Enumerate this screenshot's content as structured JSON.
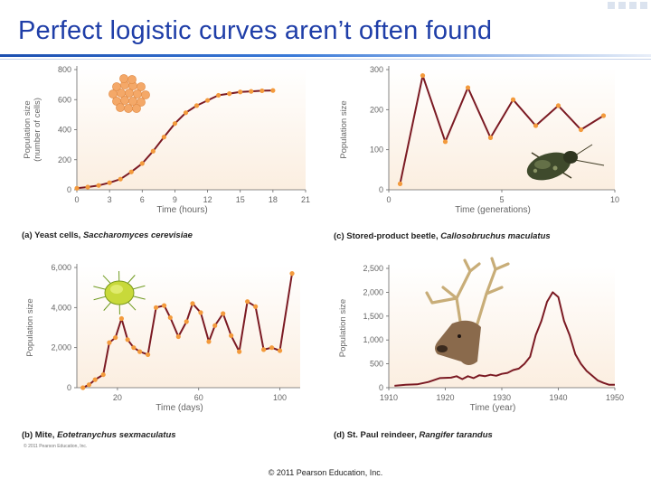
{
  "slide": {
    "title": "Perfect logistic curves aren’t often found",
    "footer": "© 2011 Pearson Education, Inc.",
    "credit": "© 2011 Pearson Education, Inc."
  },
  "colors": {
    "title": "#1f3ea8",
    "line": "#7b1a23",
    "marker": "#f39a3c",
    "plot_bg": "#fbeee0",
    "axis": "#666666",
    "caption": "#222222"
  },
  "chart_data": [
    {
      "id": "a",
      "type": "line",
      "caption_letter": "(a) Yeast cells, ",
      "caption_species": "Saccharomyces cerevisiae",
      "xlabel": "Time (hours)",
      "ylabel": "Population size (number of cells)",
      "ylabel_lines": [
        "Population size",
        "(number of cells)"
      ],
      "xlim": [
        0,
        21
      ],
      "ylim": [
        0,
        800
      ],
      "xticks": [
        0,
        3,
        6,
        9,
        12,
        15,
        18,
        21
      ],
      "yticks": [
        0,
        200,
        400,
        600,
        800
      ],
      "xticklabels": [
        "0",
        "3",
        "6",
        "9",
        "12",
        "15",
        "18",
        "21"
      ],
      "yticklabels": [
        "0",
        "200",
        "400",
        "600",
        "800"
      ],
      "markers": true,
      "x": [
        0,
        1,
        2,
        3,
        4,
        5,
        6,
        7,
        8,
        9,
        10,
        11,
        12,
        13,
        14,
        15,
        16,
        17,
        18
      ],
      "y": [
        10,
        18,
        29,
        47,
        71,
        119,
        175,
        257,
        351,
        441,
        513,
        560,
        595,
        629,
        640,
        651,
        655,
        659,
        661
      ]
    },
    {
      "id": "b",
      "type": "line",
      "caption_letter": "(b) Mite, ",
      "caption_species": "Eotetranychus sexmaculatus",
      "xlabel": "Time (days)",
      "ylabel": "Population size",
      "ylabel_lines": [
        "Population size"
      ],
      "xlim": [
        0,
        110
      ],
      "ylim": [
        0,
        6000
      ],
      "xticks": [
        20,
        60,
        100
      ],
      "yticks": [
        0,
        2000,
        4000,
        6000
      ],
      "xticklabels": [
        "20",
        "60",
        "100"
      ],
      "yticklabels": [
        "0",
        "2,000",
        "4,000",
        "6,000"
      ],
      "markers": true,
      "x": [
        3,
        6,
        9,
        13,
        16,
        19,
        22,
        25,
        28,
        31,
        35,
        39,
        43,
        46,
        50,
        54,
        57,
        61,
        65,
        68,
        72,
        76,
        80,
        84,
        88,
        92,
        96,
        100,
        106
      ],
      "y": [
        0,
        150,
        400,
        650,
        2250,
        2500,
        3450,
        2400,
        2000,
        1800,
        1650,
        4000,
        4100,
        3500,
        2550,
        3300,
        4200,
        3750,
        2300,
        3100,
        3700,
        2600,
        1800,
        4300,
        4050,
        1900,
        2000,
        1850,
        5700
      ]
    },
    {
      "id": "c",
      "type": "line",
      "caption_letter": "(c) Stored-product beetle, ",
      "caption_species": "Callosobruchus maculatus",
      "xlabel": "Time (generations)",
      "ylabel": "Population size",
      "ylabel_lines": [
        "Population size"
      ],
      "xlim": [
        0,
        10
      ],
      "ylim": [
        0,
        300
      ],
      "xticks": [
        0,
        5,
        10
      ],
      "yticks": [
        0,
        100,
        200,
        300
      ],
      "xticklabels": [
        "0",
        "5",
        "10"
      ],
      "yticklabels": [
        "0",
        "100",
        "200",
        "300"
      ],
      "markers": true,
      "x": [
        0.5,
        1.5,
        2.5,
        3.5,
        4.5,
        5.5,
        6.5,
        7.5,
        8.5,
        9.5
      ],
      "y": [
        15,
        285,
        120,
        255,
        130,
        225,
        160,
        210,
        150,
        185
      ]
    },
    {
      "id": "d",
      "type": "line",
      "caption_letter": "(d) St. Paul reindeer, ",
      "caption_species": "Rangifer tarandus",
      "xlabel": "Time (year)",
      "ylabel": "Population size",
      "ylabel_lines": [
        "Population size"
      ],
      "xlim": [
        1910,
        1950
      ],
      "ylim": [
        0,
        2500
      ],
      "xticks": [
        1910,
        1920,
        1930,
        1940,
        1950
      ],
      "yticks": [
        0,
        500,
        1000,
        1500,
        2000,
        2500
      ],
      "xticklabels": [
        "1910",
        "1920",
        "1930",
        "1940",
        "1950"
      ],
      "yticklabels": [
        "0",
        "500",
        "1,000",
        "1,500",
        "2,000",
        "2,500"
      ],
      "markers": false,
      "x": [
        1911,
        1913,
        1915,
        1917,
        1919,
        1921,
        1922,
        1923,
        1924,
        1925,
        1926,
        1927,
        1928,
        1929,
        1930,
        1931,
        1932,
        1933,
        1934,
        1935,
        1936,
        1937,
        1938,
        1939,
        1940,
        1941,
        1942,
        1943,
        1944,
        1945,
        1946,
        1947,
        1948,
        1949,
        1950
      ],
      "y": [
        40,
        60,
        70,
        120,
        200,
        210,
        240,
        180,
        240,
        200,
        260,
        240,
        270,
        250,
        290,
        310,
        370,
        400,
        500,
        650,
        1100,
        1400,
        1800,
        2000,
        1900,
        1400,
        1100,
        700,
        500,
        350,
        250,
        150,
        100,
        60,
        60
      ]
    }
  ]
}
